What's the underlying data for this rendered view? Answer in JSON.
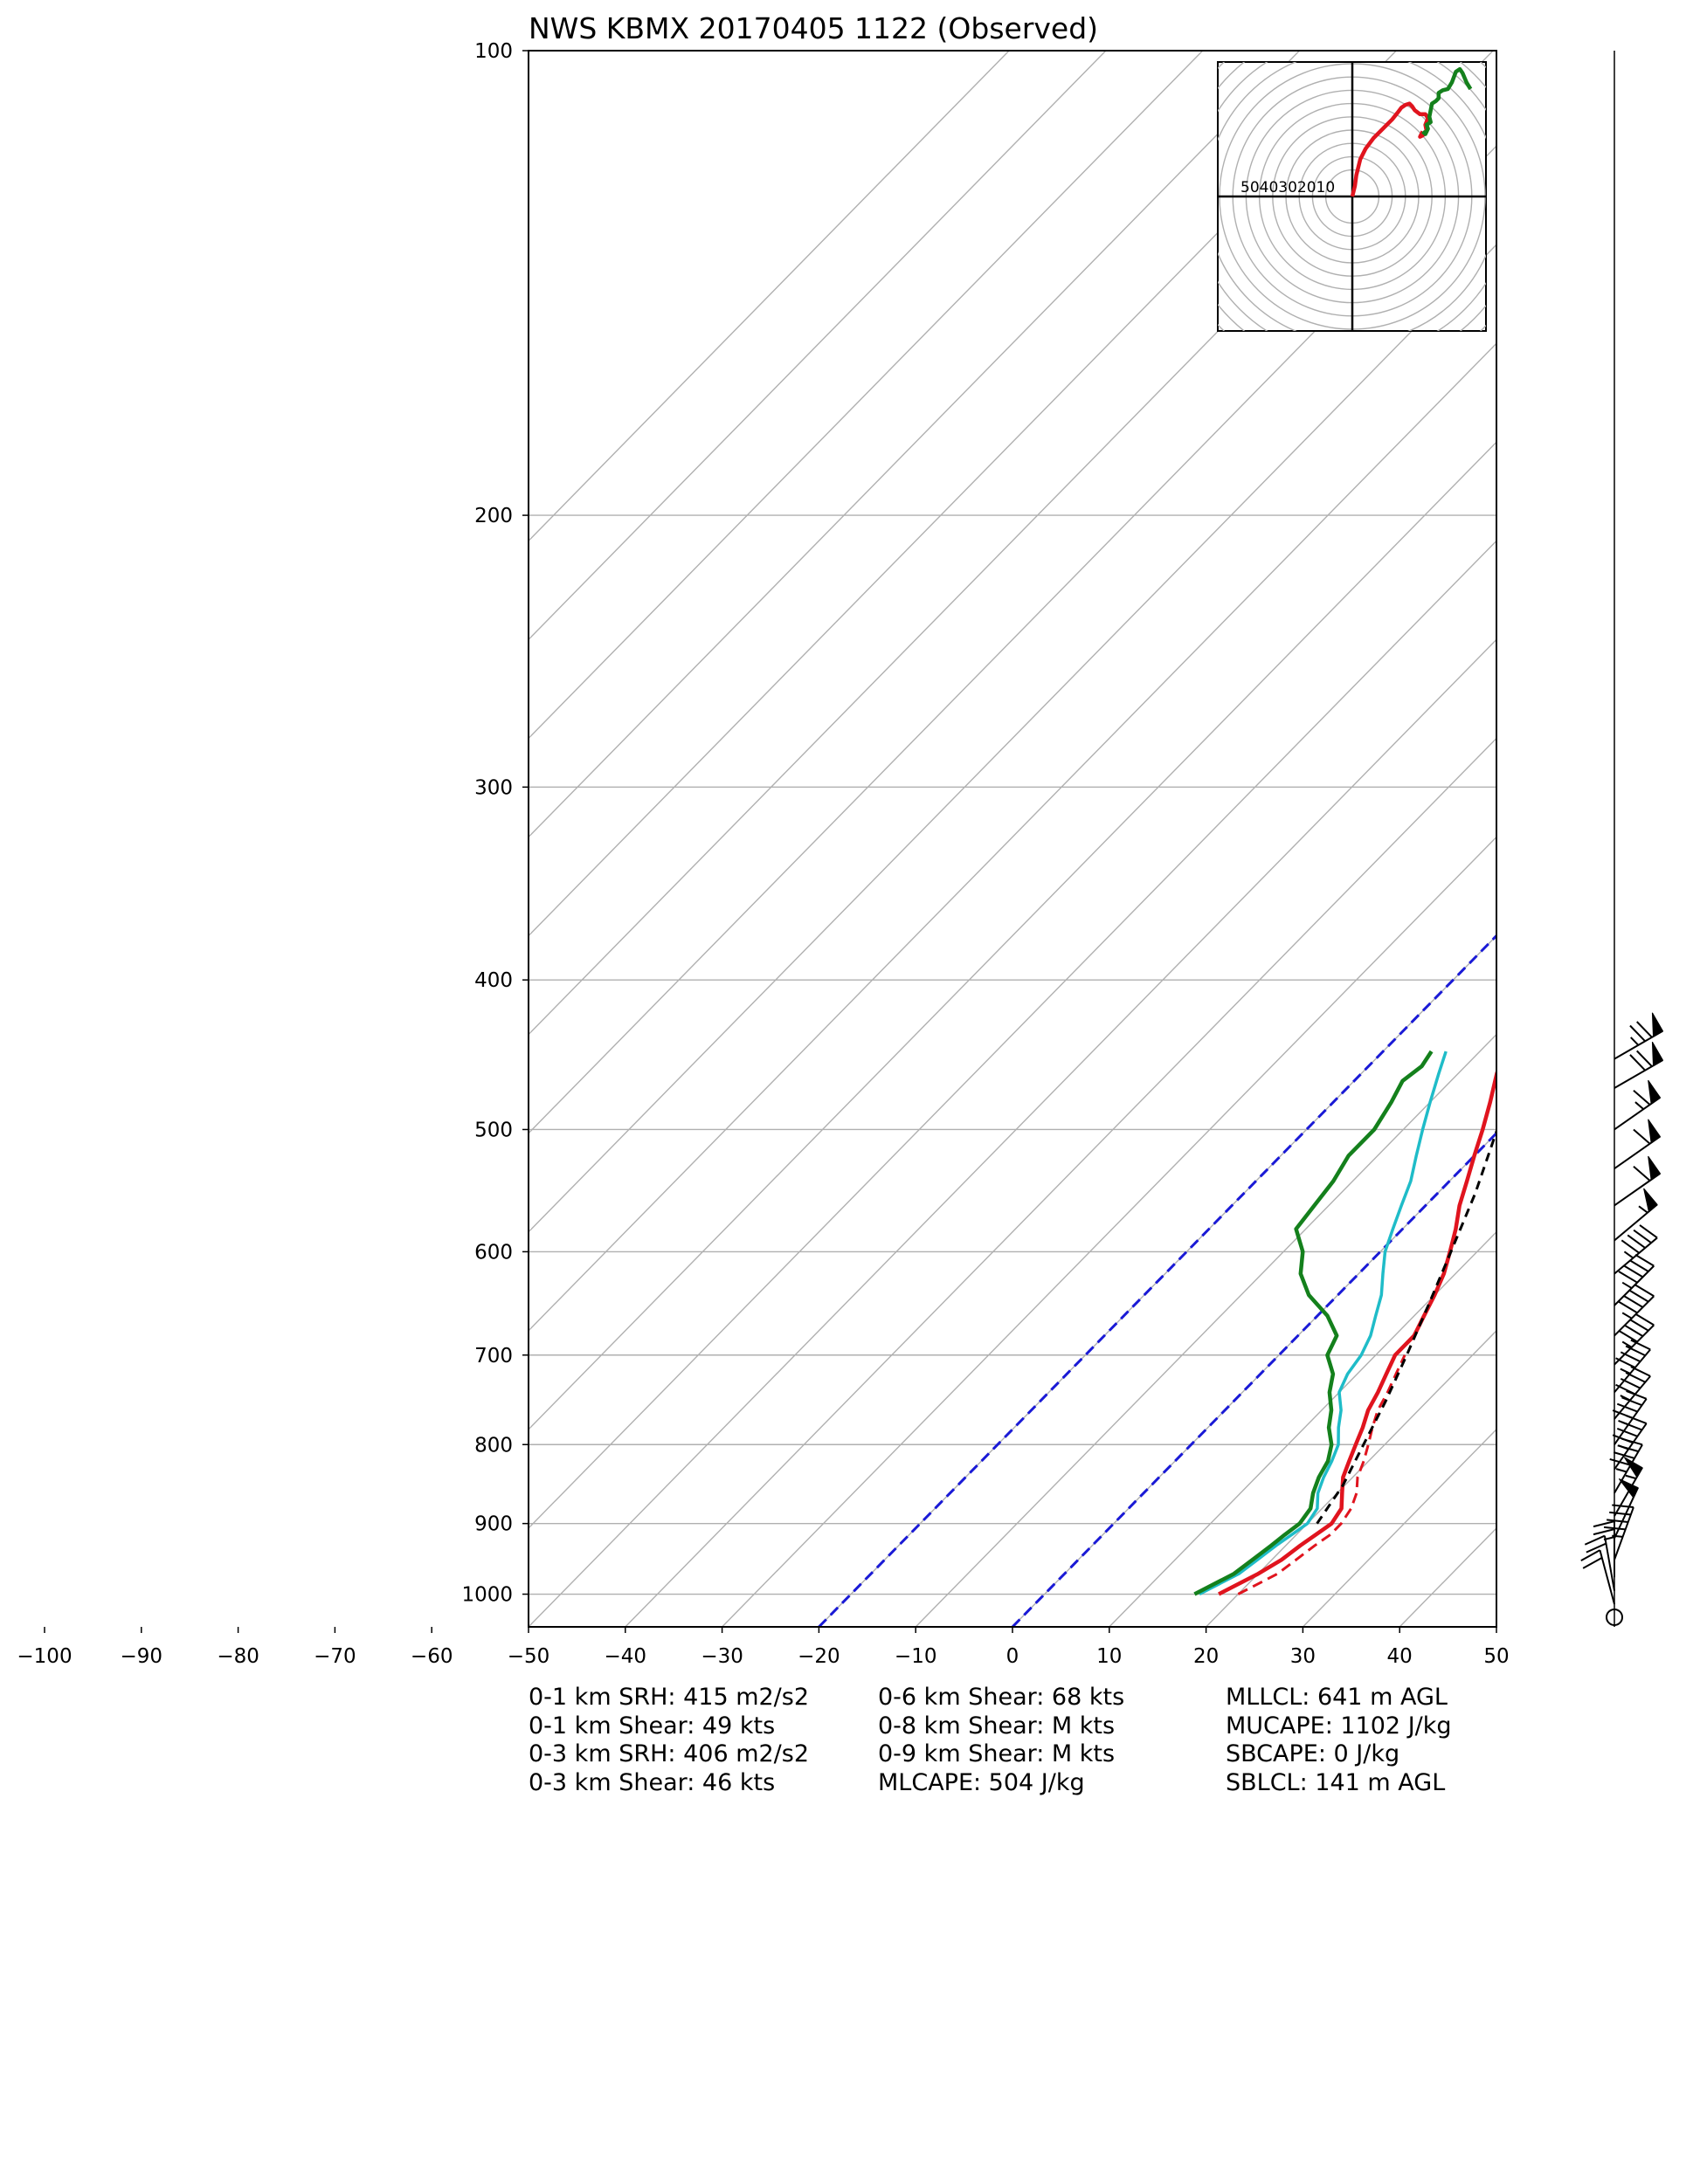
{
  "chart_data": {
    "type": "skew-t log-p sounding",
    "title": "NWS KBMX 20170405 1122   (Observed)",
    "xlabel": "",
    "ylabel": "",
    "x_ticks": [
      -100,
      -90,
      -80,
      -70,
      -60,
      -50,
      -40,
      -30,
      -20,
      -10,
      0,
      10,
      20,
      30,
      40,
      50
    ],
    "y_ticks": [
      100,
      200,
      300,
      400,
      500,
      600,
      700,
      800,
      900,
      1000
    ],
    "xlim": [
      -50,
      50
    ],
    "ylim": [
      1050,
      100
    ],
    "y_scale": "log",
    "grid": true,
    "colors": {
      "temperature": "#e0141e",
      "dewpoint": "#14801c",
      "wetbulb": "#1fbcc8",
      "virtual_temperature": "#e0141e",
      "parcel": "#000000",
      "isotherm_highlight": "#1a1ad6",
      "grid": "#b0b0b0"
    },
    "highlighted_isotherms": [
      -20,
      0
    ],
    "series": [
      {
        "key": "temperature",
        "points": [
          [
            1000,
            18
          ],
          [
            985,
            19
          ],
          [
            970,
            20
          ],
          [
            950,
            21
          ],
          [
            930,
            21.5
          ],
          [
            915,
            22
          ],
          [
            900,
            22.5
          ],
          [
            880,
            22
          ],
          [
            860,
            20.5
          ],
          [
            840,
            19
          ],
          [
            820,
            18
          ],
          [
            800,
            17
          ],
          [
            780,
            16
          ],
          [
            760,
            14.8
          ],
          [
            740,
            14
          ],
          [
            720,
            13
          ],
          [
            700,
            12
          ],
          [
            680,
            12
          ],
          [
            660,
            11
          ],
          [
            640,
            10
          ],
          [
            620,
            8.8
          ],
          [
            600,
            7.2
          ],
          [
            580,
            5.5
          ],
          [
            560,
            3.5
          ],
          [
            540,
            1.8
          ],
          [
            520,
            0
          ],
          [
            500,
            -1.8
          ],
          [
            480,
            -3.8
          ],
          [
            460,
            -6
          ],
          [
            445,
            -7.5
          ]
        ]
      },
      {
        "key": "virtual_temperature",
        "points": [
          [
            1000,
            20
          ],
          [
            985,
            21
          ],
          [
            970,
            22
          ],
          [
            950,
            22.5
          ],
          [
            930,
            23
          ],
          [
            915,
            23.5
          ],
          [
            900,
            23.5
          ],
          [
            880,
            23
          ],
          [
            860,
            22
          ],
          [
            840,
            20.5
          ],
          [
            820,
            19.5
          ],
          [
            800,
            18.3
          ],
          [
            780,
            17
          ],
          [
            760,
            15.8
          ],
          [
            740,
            15
          ],
          [
            720,
            14
          ],
          [
            700,
            13
          ]
        ]
      },
      {
        "key": "wetbulb",
        "points": [
          [
            1000,
            16
          ],
          [
            985,
            17
          ],
          [
            970,
            18
          ],
          [
            950,
            18.5
          ],
          [
            930,
            19
          ],
          [
            915,
            19.5
          ],
          [
            900,
            20
          ],
          [
            880,
            19.5
          ],
          [
            860,
            18
          ],
          [
            840,
            17
          ],
          [
            820,
            16.2
          ],
          [
            800,
            15.2
          ],
          [
            780,
            13.5
          ],
          [
            760,
            12
          ],
          [
            740,
            10
          ],
          [
            720,
            9
          ],
          [
            700,
            8.5
          ],
          [
            680,
            7.5
          ],
          [
            660,
            6
          ],
          [
            640,
            4.5
          ],
          [
            620,
            2.5
          ],
          [
            600,
            0.5
          ],
          [
            580,
            -1
          ],
          [
            560,
            -2.5
          ],
          [
            540,
            -4
          ],
          [
            520,
            -6
          ],
          [
            500,
            -8
          ],
          [
            480,
            -10
          ],
          [
            460,
            -12
          ],
          [
            445,
            -13.5
          ]
        ]
      },
      {
        "key": "dewpoint",
        "points": [
          [
            1000,
            15.5
          ],
          [
            985,
            16.5
          ],
          [
            970,
            17.5
          ],
          [
            950,
            18
          ],
          [
            930,
            18.5
          ],
          [
            915,
            18.8
          ],
          [
            900,
            19.2
          ],
          [
            880,
            18.8
          ],
          [
            860,
            17.5
          ],
          [
            840,
            16.5
          ],
          [
            820,
            15.8
          ],
          [
            800,
            14.5
          ],
          [
            780,
            12.5
          ],
          [
            760,
            11
          ],
          [
            740,
            9
          ],
          [
            720,
            7.5
          ],
          [
            700,
            5
          ],
          [
            680,
            4
          ],
          [
            660,
            1
          ],
          [
            640,
            -3
          ],
          [
            620,
            -6
          ],
          [
            600,
            -8
          ],
          [
            580,
            -11
          ],
          [
            560,
            -11.5
          ],
          [
            540,
            -12
          ],
          [
            520,
            -13
          ],
          [
            500,
            -13
          ],
          [
            480,
            -14
          ],
          [
            465,
            -15
          ],
          [
            455,
            -14.5
          ],
          [
            445,
            -15
          ]
        ]
      },
      {
        "key": "parcel",
        "points": [
          [
            900,
            21
          ],
          [
            850,
            19.8
          ],
          [
            800,
            17.8
          ],
          [
            750,
            15.7
          ],
          [
            700,
            13.2
          ],
          [
            650,
            10.4
          ],
          [
            600,
            7.3
          ],
          [
            550,
            3.9
          ],
          [
            500,
            -0.3
          ],
          [
            470,
            -3.3
          ],
          [
            445,
            -5.7
          ]
        ]
      }
    ],
    "hodograph": {
      "ring_labels": [
        "50",
        "40",
        "30",
        "20",
        "10"
      ],
      "ring_step_kts": 10,
      "max_kts": 50,
      "segments": [
        {
          "key": "red",
          "color": "#e0141e",
          "points": [
            [
              0,
              0
            ],
            [
              1,
              4
            ],
            [
              1.5,
              8
            ],
            [
              3,
              14
            ],
            [
              5,
              18
            ],
            [
              8,
              22
            ],
            [
              11,
              25
            ],
            [
              13,
              27
            ],
            [
              15,
              29
            ],
            [
              17,
              31.5
            ],
            [
              18.5,
              33.5
            ],
            [
              20,
              34.5
            ],
            [
              21.5,
              35
            ],
            [
              22.5,
              34
            ],
            [
              23.5,
              32.5
            ],
            [
              25.5,
              31
            ],
            [
              27.5,
              31
            ],
            [
              28.5,
              29.5
            ],
            [
              27.5,
              27
            ],
            [
              28,
              24.5
            ],
            [
              26.5,
              23
            ],
            [
              25.5,
              22.5
            ],
            [
              26.5,
              24.5
            ]
          ]
        },
        {
          "key": "green",
          "color": "#14801c",
          "points": [
            [
              26.5,
              24.5
            ],
            [
              27.5,
              23.5
            ],
            [
              28.5,
              25.5
            ],
            [
              28,
              27
            ],
            [
              29.5,
              28
            ],
            [
              29,
              30
            ],
            [
              29.5,
              32.5
            ],
            [
              30,
              35
            ],
            [
              31.5,
              36
            ],
            [
              32.5,
              37
            ],
            [
              32.5,
              39
            ],
            [
              34,
              40
            ],
            [
              36,
              40.5
            ],
            [
              37.5,
              43
            ],
            [
              39,
              47
            ],
            [
              40.5,
              48
            ],
            [
              41.5,
              46.5
            ],
            [
              43,
              43
            ],
            [
              44.5,
              40.5
            ]
          ]
        }
      ]
    },
    "wind_barbs": [
      {
        "p": 450,
        "dir": 240,
        "kts": 75
      },
      {
        "p": 470,
        "dir": 240,
        "kts": 70
      },
      {
        "p": 500,
        "dir": 235,
        "kts": 65
      },
      {
        "p": 530,
        "dir": 235,
        "kts": 60
      },
      {
        "p": 560,
        "dir": 235,
        "kts": 60
      },
      {
        "p": 590,
        "dir": 230,
        "kts": 55
      },
      {
        "p": 620,
        "dir": 230,
        "kts": 45
      },
      {
        "p": 650,
        "dir": 225,
        "kts": 45
      },
      {
        "p": 680,
        "dir": 225,
        "kts": 45
      },
      {
        "p": 710,
        "dir": 225,
        "kts": 45
      },
      {
        "p": 740,
        "dir": 220,
        "kts": 45
      },
      {
        "p": 770,
        "dir": 220,
        "kts": 45
      },
      {
        "p": 800,
        "dir": 215,
        "kts": 45
      },
      {
        "p": 830,
        "dir": 215,
        "kts": 45
      },
      {
        "p": 860,
        "dir": 210,
        "kts": 45
      },
      {
        "p": 890,
        "dir": 210,
        "kts": 55
      },
      {
        "p": 920,
        "dir": 205,
        "kts": 50
      },
      {
        "p": 950,
        "dir": 200,
        "kts": 45
      },
      {
        "p": 975,
        "dir": 180,
        "kts": 25
      },
      {
        "p": 995,
        "dir": 170,
        "kts": 20
      },
      {
        "p": 1015,
        "dir": 165,
        "kts": 20
      },
      {
        "p": 1035,
        "dir": 0,
        "kts": 0
      }
    ]
  },
  "parameters": {
    "col1": [
      "0-1 km SRH: 415 m2/s2",
      "0-1 km Shear: 49 kts",
      "0-3 km SRH: 406 m2/s2",
      "0-3 km Shear: 46 kts"
    ],
    "col2": [
      "0-6 km Shear: 68 kts",
      "0-8 km Shear: M kts",
      "0-9 km Shear: M kts",
      "MLCAPE: 504 J/kg"
    ],
    "col3": [
      "MLLCL: 641 m AGL",
      "MUCAPE: 1102 J/kg",
      "SBCAPE: 0 J/kg",
      "SBLCL: 141 m AGL"
    ]
  }
}
